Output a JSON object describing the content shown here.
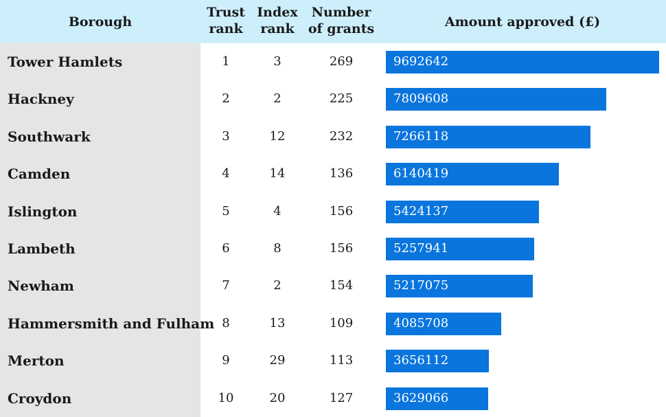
{
  "chart_data": {
    "type": "table",
    "columns": [
      "Borough",
      "Trust rank",
      "Index rank",
      "Number of grants",
      "Amount approved (£)"
    ],
    "header_lines": {
      "borough": [
        "Borough"
      ],
      "trust_rank": [
        "Trust",
        "rank"
      ],
      "index_rank": [
        "Index",
        "rank"
      ],
      "grants": [
        "Number",
        "of grants"
      ],
      "amount": [
        "Amount approved (£)"
      ]
    },
    "rows": [
      {
        "borough": "Tower Hamlets",
        "trust_rank": "1",
        "index_rank": "3",
        "grants": "269",
        "amount": 9692642
      },
      {
        "borough": "Hackney",
        "trust_rank": "2",
        "index_rank": "2",
        "grants": "225",
        "amount": 7809608
      },
      {
        "borough": "Southwark",
        "trust_rank": "3",
        "index_rank": "12",
        "grants": "232",
        "amount": 7266118
      },
      {
        "borough": "Camden",
        "trust_rank": "4",
        "index_rank": "14",
        "grants": "136",
        "amount": 6140419
      },
      {
        "borough": "Islington",
        "trust_rank": "5",
        "index_rank": "4",
        "grants": "156",
        "amount": 5424137
      },
      {
        "borough": "Lambeth",
        "trust_rank": "6",
        "index_rank": "8",
        "grants": "156",
        "amount": 5257941
      },
      {
        "borough": "Newham",
        "trust_rank": "7",
        "index_rank": "2",
        "grants": "154",
        "amount": 5217075
      },
      {
        "borough": "Hammersmith and Fulham",
        "trust_rank": "8",
        "index_rank": "13",
        "grants": "109",
        "amount": 4085708
      },
      {
        "borough": "Merton",
        "trust_rank": "9",
        "index_rank": "29",
        "grants": "113",
        "amount": 3656112
      },
      {
        "borough": "Croydon",
        "trust_rank": "10",
        "index_rank": "20",
        "grants": "127",
        "amount": 3629066
      }
    ],
    "bar_max": 9692642,
    "colors": {
      "header_bg": "#cdeffb",
      "borough_bg": "#e5e5e5",
      "bar": "#0a75dd",
      "bar_text": "#ffffff"
    }
  }
}
